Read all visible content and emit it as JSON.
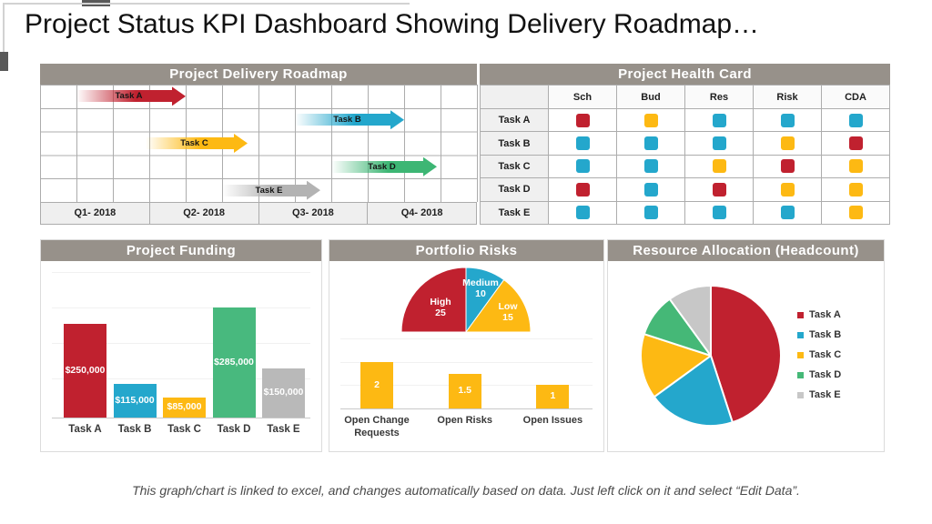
{
  "page": {
    "title": "Project Status KPI Dashboard Showing Delivery Roadmap…",
    "caption": "This graph/chart is linked to excel, and changes automatically based on data. Just left click on it and select “Edit Data”."
  },
  "colors": {
    "red": "#C0212F",
    "blue": "#24A7CC",
    "gold": "#FDB913",
    "green": "#45B877",
    "gray": "#B9B9B9",
    "silver": "#C7C7C7",
    "header_bg": "#97918A"
  },
  "chart_data": [
    {
      "id": "roadmap",
      "type": "gantt",
      "title": "Project Delivery Roadmap",
      "x_categories": [
        "Q1- 2018",
        "Q2- 2018",
        "Q3- 2018",
        "Q4- 2018"
      ],
      "grid_columns": 12,
      "bars": [
        {
          "label": "Task A",
          "row": 1,
          "start_col": 1.0,
          "end_col": 4.0,
          "color": "#C0212F"
        },
        {
          "label": "Task B",
          "row": 2,
          "start_col": 7.0,
          "end_col": 10.0,
          "color": "#24A7CC"
        },
        {
          "label": "Task C",
          "row": 3,
          "start_col": 2.9,
          "end_col": 5.7,
          "color": "#FDB913"
        },
        {
          "label": "Task D",
          "row": 4,
          "start_col": 8.0,
          "end_col": 10.9,
          "color": "#3DB674"
        },
        {
          "label": "Task E",
          "row": 5,
          "start_col": 5.0,
          "end_col": 7.7,
          "color": "#B3B3B3"
        }
      ]
    },
    {
      "id": "health_card",
      "type": "table",
      "title": "Project Health Card",
      "columns": [
        "Sch",
        "Bud",
        "Res",
        "Risk",
        "CDA"
      ],
      "rows": [
        {
          "label": "Task A",
          "cells": [
            "red",
            "gold",
            "blue",
            "blue",
            "blue"
          ]
        },
        {
          "label": "Task B",
          "cells": [
            "blue",
            "blue",
            "blue",
            "gold",
            "red"
          ]
        },
        {
          "label": "Task C",
          "cells": [
            "blue",
            "blue",
            "gold",
            "red",
            "gold"
          ]
        },
        {
          "label": "Task D",
          "cells": [
            "red",
            "blue",
            "red",
            "gold",
            "gold"
          ]
        },
        {
          "label": "Task E",
          "cells": [
            "blue",
            "blue",
            "blue",
            "blue",
            "gold"
          ]
        }
      ]
    },
    {
      "id": "funding",
      "type": "bar",
      "title": "Project Funding",
      "categories": [
        "Task A",
        "Task B",
        "Task C",
        "Task D",
        "Task E"
      ],
      "values": [
        250000,
        115000,
        85000,
        285000,
        150000
      ],
      "value_labels": [
        "$250,000",
        "$115,000",
        "$85,000",
        "$285,000",
        "$150,000"
      ],
      "colors": [
        "#C0212F",
        "#24A7CC",
        "#FDB913",
        "#48B97E",
        "#B9B9B9"
      ],
      "ylim": [
        40000,
        300000
      ],
      "grid": true
    },
    {
      "id": "portfolio_risks_gauge",
      "type": "pie",
      "subtype": "half",
      "title": "Portfolio  Risks",
      "span_degrees": 180,
      "slices": [
        {
          "label": "High",
          "value": 25,
          "color": "#C0212F"
        },
        {
          "label": "Medium",
          "value": 10,
          "color": "#24A7CC"
        },
        {
          "label": "Low",
          "value": 15,
          "color": "#FDB913"
        }
      ]
    },
    {
      "id": "portfolio_risks_bars",
      "type": "bar",
      "categories": [
        "Open Change Requests",
        "Open Risks",
        "Open Issues"
      ],
      "values": [
        2,
        1.5,
        1
      ],
      "value_labels": [
        "2",
        "1.5",
        "1"
      ],
      "colors": [
        "#FDB913",
        "#FDB913",
        "#FDB913"
      ],
      "ylim": [
        0,
        3
      ],
      "grid": true
    },
    {
      "id": "resource_allocation",
      "type": "pie",
      "title": "Resource Allocation  (Headcount)",
      "legend_position": "right",
      "slices": [
        {
          "label": "Task A",
          "value": 45,
          "color": "#C0212F"
        },
        {
          "label": "Task B",
          "value": 20,
          "color": "#24A7CC"
        },
        {
          "label": "Task C",
          "value": 15,
          "color": "#FDB913"
        },
        {
          "label": "Task D",
          "value": 10,
          "color": "#45B877"
        },
        {
          "label": "Task E",
          "value": 10,
          "color": "#C7C7C7"
        }
      ]
    }
  ]
}
